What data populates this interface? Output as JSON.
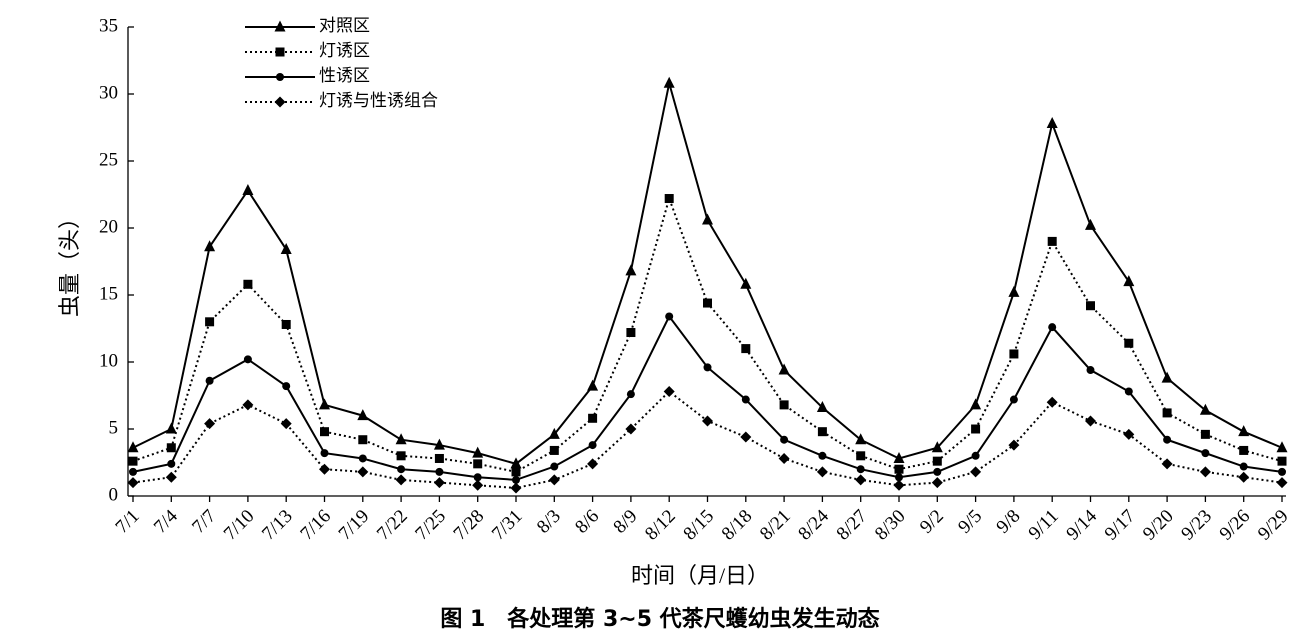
{
  "chart_data": {
    "type": "line",
    "x_label": "时间（月/日）",
    "y_label": "虫量（头）",
    "caption": "图 1　各处理第 3~5 代茶尺蠖幼虫发生动态",
    "categories": [
      "7/1",
      "7/4",
      "7/7",
      "7/10",
      "7/13",
      "7/16",
      "7/19",
      "7/22",
      "7/25",
      "7/28",
      "7/31",
      "8/3",
      "8/6",
      "8/9",
      "8/12",
      "8/15",
      "8/18",
      "8/21",
      "8/24",
      "8/27",
      "8/30",
      "9/2",
      "9/5",
      "9/8",
      "9/11",
      "9/14",
      "9/17",
      "9/20",
      "9/23",
      "9/26",
      "9/29"
    ],
    "ylim": [
      0,
      35
    ],
    "yticks": [
      0,
      5,
      10,
      15,
      20,
      25,
      30,
      35
    ],
    "grid": false,
    "legend": "upper-left",
    "series": [
      {
        "name": "对照区",
        "color": "#000000",
        "line_style": "solid",
        "marker": "triangle",
        "values": [
          3.6,
          5.0,
          18.6,
          22.8,
          18.4,
          6.8,
          6.0,
          4.2,
          3.8,
          3.2,
          2.4,
          4.6,
          8.2,
          16.8,
          30.8,
          20.6,
          15.8,
          9.4,
          6.6,
          4.2,
          2.8,
          3.6,
          6.8,
          15.2,
          27.8,
          20.2,
          16.0,
          8.8,
          6.4,
          4.8,
          3.6
        ]
      },
      {
        "name": "灯诱区",
        "color": "#000000",
        "line_style": "dotted",
        "marker": "square",
        "values": [
          2.6,
          3.6,
          13.0,
          15.8,
          12.8,
          4.8,
          4.2,
          3.0,
          2.8,
          2.4,
          1.8,
          3.4,
          5.8,
          12.2,
          22.2,
          14.4,
          11.0,
          6.8,
          4.8,
          3.0,
          2.0,
          2.6,
          5.0,
          10.6,
          19.0,
          14.2,
          11.4,
          6.2,
          4.6,
          3.4,
          2.6
        ]
      },
      {
        "name": "性诱区",
        "color": "#000000",
        "line_style": "solid",
        "marker": "circle",
        "values": [
          1.8,
          2.4,
          8.6,
          10.2,
          8.2,
          3.2,
          2.8,
          2.0,
          1.8,
          1.4,
          1.2,
          2.2,
          3.8,
          7.6,
          13.4,
          9.6,
          7.2,
          4.2,
          3.0,
          2.0,
          1.4,
          1.8,
          3.0,
          7.2,
          12.6,
          9.4,
          7.8,
          4.2,
          3.2,
          2.2,
          1.8
        ]
      },
      {
        "name": "灯诱与性诱组合",
        "color": "#000000",
        "line_style": "dotted",
        "marker": "diamond",
        "values": [
          1.0,
          1.4,
          5.4,
          6.8,
          5.4,
          2.0,
          1.8,
          1.2,
          1.0,
          0.8,
          0.6,
          1.2,
          2.4,
          5.0,
          7.8,
          5.6,
          4.4,
          2.8,
          1.8,
          1.2,
          0.8,
          1.0,
          1.8,
          3.8,
          7.0,
          5.6,
          4.6,
          2.4,
          1.8,
          1.4,
          1.0
        ]
      }
    ]
  }
}
